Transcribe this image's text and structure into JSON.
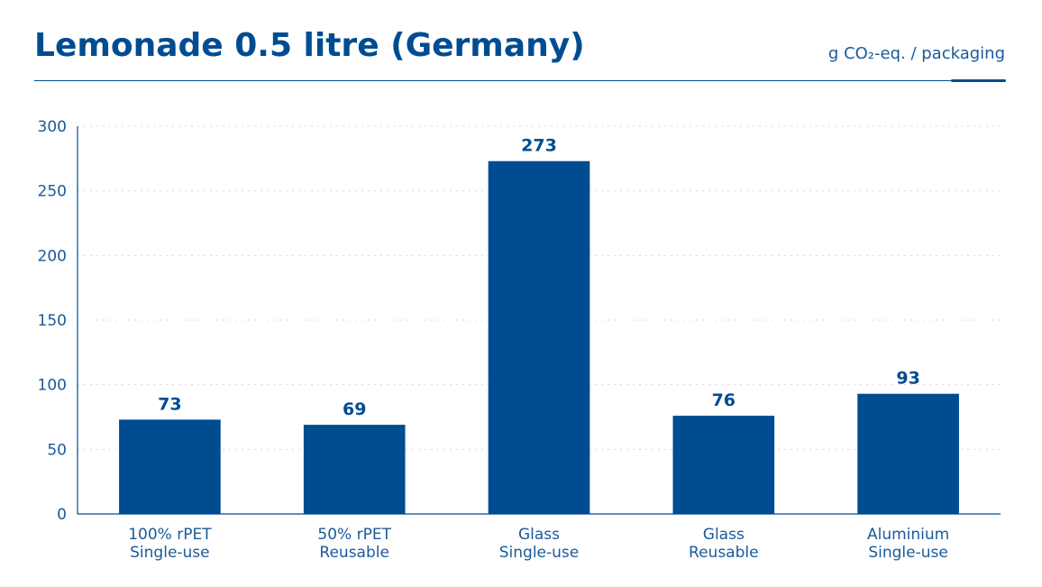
{
  "header": {
    "title": "Lemonade 0.5 litre (Germany)",
    "unit": "g CO₂-eq. / packaging"
  },
  "colors": {
    "bar": "#004c91",
    "text": "#1a5a9a",
    "grid": "#d9d9d9"
  },
  "chart_data": {
    "type": "bar",
    "title": "Lemonade 0.5 litre (Germany)",
    "ylabel": "g CO₂-eq. / packaging",
    "categories": [
      [
        "100% rPET",
        "Single-use"
      ],
      [
        "50% rPET",
        "Reusable"
      ],
      [
        "Glass",
        "Single-use"
      ],
      [
        "Glass",
        "Reusable"
      ],
      [
        "Aluminium",
        "Single-use"
      ]
    ],
    "values": [
      73,
      69,
      273,
      76,
      93
    ],
    "ylim": [
      0,
      300
    ],
    "yticks": [
      0,
      50,
      100,
      150,
      200,
      250,
      300
    ],
    "grid": true,
    "data_labels": true
  }
}
